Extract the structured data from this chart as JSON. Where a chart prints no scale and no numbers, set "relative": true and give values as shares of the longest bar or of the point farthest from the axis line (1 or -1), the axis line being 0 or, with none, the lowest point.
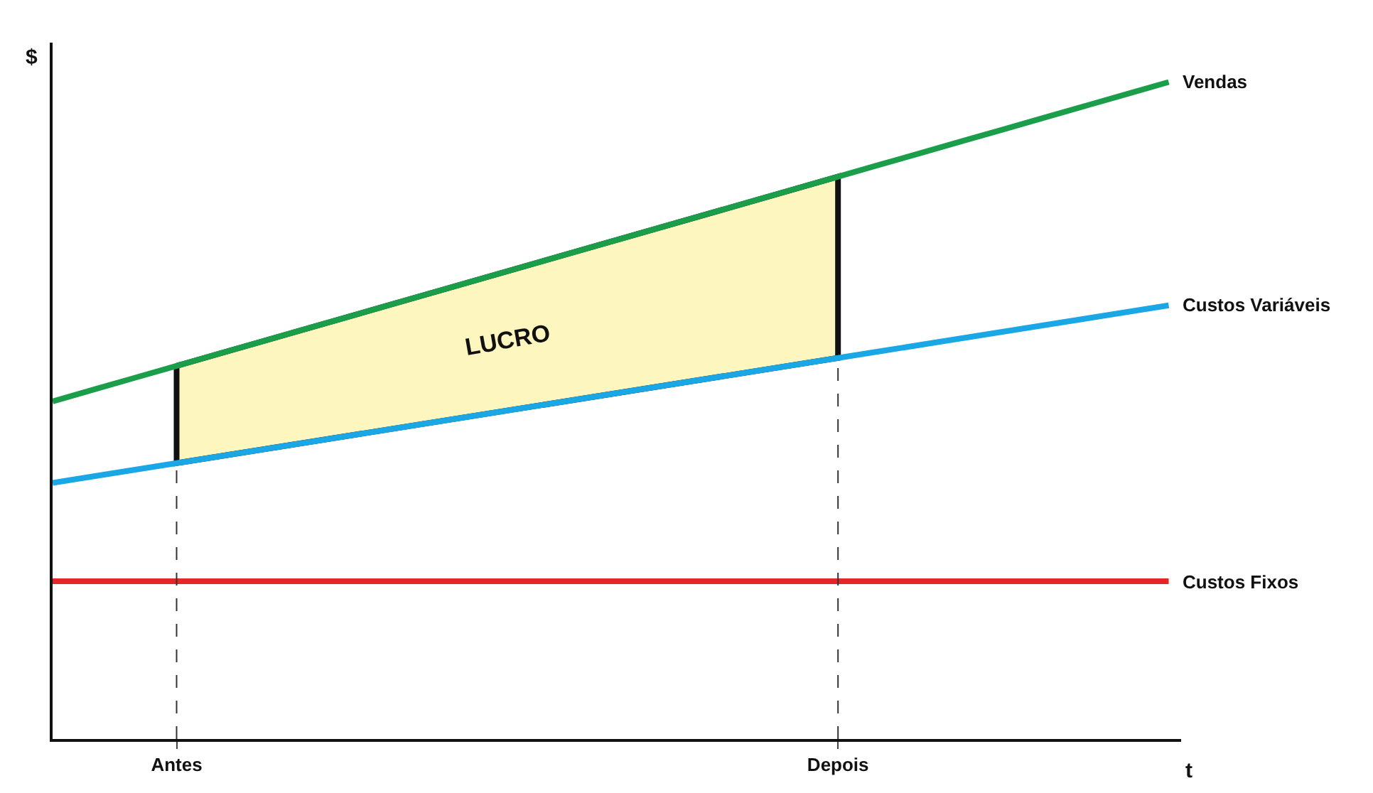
{
  "chart_data": {
    "type": "line",
    "relative": true,
    "xlabel": "t",
    "ylabel": "$",
    "categories": [
      null,
      null,
      null,
      "Antes",
      null,
      null,
      null,
      null,
      null,
      null,
      null,
      null,
      null,
      null,
      null,
      null,
      null,
      null,
      null,
      "Depois",
      null,
      null,
      null,
      null,
      null,
      null,
      null,
      null
    ],
    "series": [
      {
        "name": "Vendas",
        "color": "#1a9e4a",
        "values": [
          0.514,
          0.532,
          0.55,
          0.568,
          0.586,
          0.604,
          0.622,
          0.64,
          0.658,
          0.676,
          0.694,
          0.712,
          0.73,
          0.748,
          0.766,
          0.784,
          0.802,
          0.82,
          0.838,
          0.856,
          0.874,
          0.892,
          0.91,
          0.928,
          0.946,
          0.964,
          0.982,
          1.0
        ],
        "upper": [
          null,
          null,
          null,
          0.568,
          0.586,
          0.604,
          0.622,
          0.64,
          0.658,
          0.676,
          0.694,
          0.712,
          0.73,
          0.748,
          0.766,
          0.784,
          0.802,
          0.82,
          0.838,
          0.856,
          null,
          null,
          null,
          null,
          null,
          null,
          null,
          null
        ],
        "lower": [
          null,
          null,
          null,
          0.42,
          0.43,
          0.44,
          0.45,
          0.46,
          0.47,
          0.48,
          0.49,
          0.5,
          0.51,
          0.52,
          0.53,
          0.54,
          0.55,
          0.56,
          0.57,
          0.58,
          null,
          null,
          null,
          null,
          null,
          null,
          null,
          null
        ]
      },
      {
        "name": "Custos Variáveis",
        "color": "#1aa7e6",
        "values": [
          0.39,
          0.4,
          0.41,
          0.42,
          0.43,
          0.44,
          0.45,
          0.46,
          0.47,
          0.48,
          0.49,
          0.5,
          0.51,
          0.52,
          0.53,
          0.54,
          0.55,
          0.56,
          0.57,
          0.58,
          0.59,
          0.6,
          0.61,
          0.62,
          0.63,
          0.64,
          0.65,
          0.66
        ]
      },
      {
        "name": "Custos Fixos",
        "color": "#e3262b",
        "values": [
          0.24,
          0.24,
          0.24,
          0.24,
          0.24,
          0.24,
          0.24,
          0.24,
          0.24,
          0.24,
          0.24,
          0.24,
          0.24,
          0.24,
          0.24,
          0.24,
          0.24,
          0.24,
          0.24,
          0.24,
          0.24,
          0.24,
          0.24,
          0.24,
          0.24,
          0.24,
          0.24,
          0.24
        ]
      }
    ],
    "annotations": [
      "LUCRO"
    ],
    "ref_lines": [
      {
        "axis": "x",
        "value": "Antes",
        "line_style": "dashed",
        "color": "#333333"
      },
      {
        "axis": "x",
        "value": "Depois",
        "line_style": "dashed",
        "color": "#333333"
      }
    ],
    "legend": false,
    "line_style": "solid"
  }
}
